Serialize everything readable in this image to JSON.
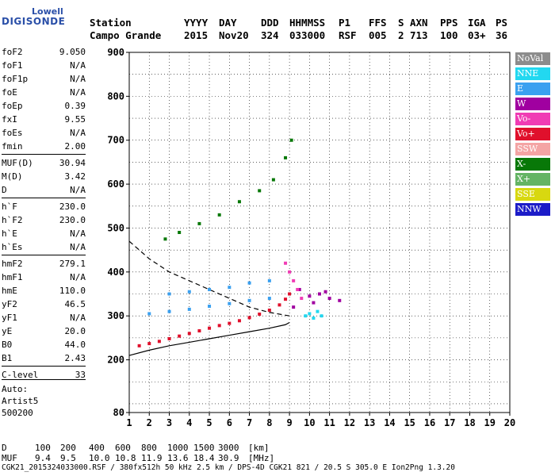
{
  "logo": {
    "top": "Lowell",
    "bottom": "DIGISONDE"
  },
  "header": {
    "row1": [
      "Station",
      "YYYY",
      "DAY",
      "DDD",
      "HHMMSS",
      "P1",
      "FFS",
      "S",
      "AXN",
      "PPS",
      "IGA",
      "PS"
    ],
    "row2": [
      "Campo Grande",
      "2015",
      "Nov20",
      "324",
      "033000",
      "RSF",
      "005",
      "2",
      "713",
      "100",
      "03+",
      "36"
    ]
  },
  "params": [
    {
      "label": "foF2",
      "value": "9.050"
    },
    {
      "label": "foF1",
      "value": "N/A"
    },
    {
      "label": "foF1p",
      "value": "N/A"
    },
    {
      "label": "foE",
      "value": "N/A"
    },
    {
      "label": "foEp",
      "value": "0.39"
    },
    {
      "label": "fxI",
      "value": "9.55"
    },
    {
      "label": "foEs",
      "value": "N/A"
    },
    {
      "label": "fmin",
      "value": "2.00"
    },
    {
      "label": "MUF(D)",
      "value": "30.94"
    },
    {
      "label": "M(D)",
      "value": "3.42"
    },
    {
      "label": "D",
      "value": "N/A"
    },
    {
      "label": "h`F",
      "value": "230.0"
    },
    {
      "label": "h`F2",
      "value": "230.0"
    },
    {
      "label": "h`E",
      "value": "N/A"
    },
    {
      "label": "h`Es",
      "value": "N/A"
    },
    {
      "label": "hmF2",
      "value": "279.1"
    },
    {
      "label": "hmF1",
      "value": "N/A"
    },
    {
      "label": "hmE",
      "value": "110.0"
    },
    {
      "label": "yF2",
      "value": "46.5"
    },
    {
      "label": "yF1",
      "value": "N/A"
    },
    {
      "label": "yE",
      "value": "20.0"
    },
    {
      "label": "B0",
      "value": "44.0"
    },
    {
      "label": "B1",
      "value": "2.43"
    },
    {
      "label": "C-level",
      "value": "33"
    }
  ],
  "auto": {
    "line1": "Auto:",
    "line2": "Artist5",
    "line3": "500200"
  },
  "bottom": {
    "d_label": "D",
    "d_values": [
      "100",
      "200",
      "400",
      "600",
      "800",
      "1000",
      "1500",
      "3000",
      "[km]"
    ],
    "muf_label": "MUF",
    "muf_values": [
      "9.4",
      "9.5",
      "10.0",
      "10.8",
      "11.9",
      "13.6",
      "18.4",
      "30.9",
      "[MHz]"
    ],
    "footer": "CGK21_2015324033000.RSF / 380fx512h 50 kHz 2.5 km / DPS-4D CGK21 821 / 20.5 S 305.0 E Ion2Png 1.3.20"
  },
  "legend": [
    {
      "label": "NoVal",
      "color": "#8c8c8c"
    },
    {
      "label": "NNE",
      "color": "#22d8f0"
    },
    {
      "label": "E",
      "color": "#3aa0f0"
    },
    {
      "label": "W",
      "color": "#a000a0"
    },
    {
      "label": "Vo-",
      "color": "#f03cb4"
    },
    {
      "label": "Vo+",
      "color": "#e0102c"
    },
    {
      "label": "SSW",
      "color": "#f4a4a4"
    },
    {
      "label": "X-",
      "color": "#087808"
    },
    {
      "label": "X+",
      "color": "#64b464"
    },
    {
      "label": "SSE",
      "color": "#d8d810"
    },
    {
      "label": "NNW",
      "color": "#1c1cc8"
    }
  ],
  "chart_data": {
    "type": "scatter",
    "xlim": [
      1,
      20
    ],
    "ylim": [
      80,
      900
    ],
    "x_ticks": [
      "1",
      "2",
      "3",
      "4",
      "5",
      "6",
      "7",
      "8",
      "9",
      "10",
      "11",
      "12",
      "13",
      "14",
      "15",
      "16",
      "17",
      "18",
      "19",
      "20"
    ],
    "y_ticks": [
      "80",
      "200",
      "300",
      "400",
      "500",
      "600",
      "700",
      "800",
      "900"
    ],
    "grid": true,
    "legend_position": "right",
    "series": [
      {
        "name": "Vo+",
        "color": "#e0102c",
        "points": [
          [
            1.5,
            232
          ],
          [
            2,
            237
          ],
          [
            2.5,
            242
          ],
          [
            3,
            248
          ],
          [
            3.5,
            254
          ],
          [
            4,
            260
          ],
          [
            4.5,
            266
          ],
          [
            5,
            272
          ],
          [
            5.5,
            278
          ],
          [
            6,
            283
          ],
          [
            6.5,
            289
          ],
          [
            7,
            296
          ],
          [
            7.5,
            304
          ],
          [
            8,
            313
          ],
          [
            8.5,
            325
          ],
          [
            8.8,
            338
          ],
          [
            9,
            350
          ]
        ]
      },
      {
        "name": "X-",
        "color": "#087808",
        "points": [
          [
            2.8,
            475
          ],
          [
            3.5,
            490
          ],
          [
            4.5,
            510
          ],
          [
            5.5,
            530
          ],
          [
            6.5,
            560
          ],
          [
            7.5,
            585
          ],
          [
            8.2,
            610
          ],
          [
            8.8,
            660
          ],
          [
            9.1,
            700
          ]
        ]
      },
      {
        "name": "E",
        "color": "#3aa0f0",
        "points": [
          [
            3,
            350
          ],
          [
            4,
            355
          ],
          [
            5,
            360
          ],
          [
            6,
            365
          ],
          [
            7,
            375
          ],
          [
            8,
            380
          ],
          [
            2,
            305
          ],
          [
            3,
            310
          ],
          [
            4,
            315
          ],
          [
            5,
            322
          ],
          [
            6,
            328
          ],
          [
            7,
            335
          ],
          [
            8,
            340
          ]
        ]
      },
      {
        "name": "W",
        "color": "#a000a0",
        "points": [
          [
            9.5,
            360
          ],
          [
            10,
            345
          ],
          [
            10.5,
            350
          ],
          [
            11,
            340
          ],
          [
            11.5,
            335
          ],
          [
            9.2,
            320
          ],
          [
            10.2,
            330
          ],
          [
            10.8,
            355
          ]
        ]
      },
      {
        "name": "Vo-",
        "color": "#f03cb4",
        "points": [
          [
            8.8,
            420
          ],
          [
            9,
            400
          ],
          [
            9.2,
            380
          ],
          [
            9.4,
            360
          ],
          [
            9.6,
            340
          ]
        ]
      },
      {
        "name": "NNE",
        "color": "#22d8f0",
        "points": [
          [
            9.8,
            300
          ],
          [
            10,
            305
          ],
          [
            10.2,
            295
          ],
          [
            10.4,
            310
          ],
          [
            10.6,
            300
          ]
        ]
      }
    ],
    "profile_solid": [
      [
        1,
        210
      ],
      [
        2,
        222
      ],
      [
        3,
        232
      ],
      [
        4,
        240
      ],
      [
        5,
        248
      ],
      [
        6,
        256
      ],
      [
        7,
        264
      ],
      [
        8,
        272
      ],
      [
        8.8,
        280
      ],
      [
        9,
        285
      ]
    ],
    "profile_dashed": [
      [
        1,
        470
      ],
      [
        2,
        430
      ],
      [
        3,
        400
      ],
      [
        4,
        380
      ],
      [
        5,
        360
      ],
      [
        6,
        340
      ],
      [
        7,
        320
      ],
      [
        8,
        308
      ],
      [
        9,
        300
      ]
    ]
  }
}
